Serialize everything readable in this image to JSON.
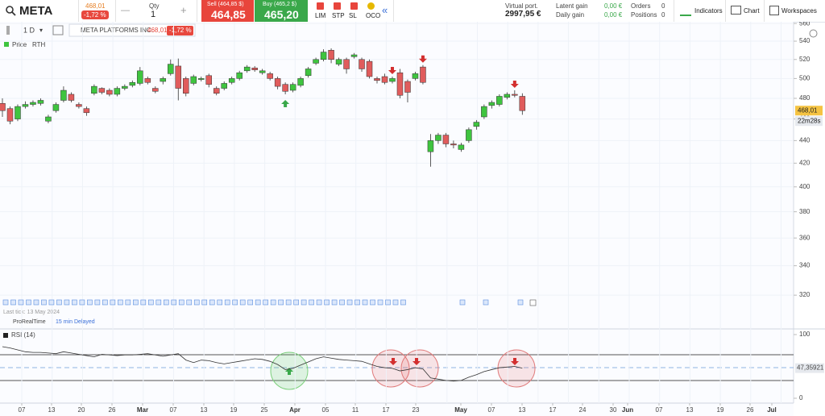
{
  "toolbar": {
    "symbol": "META",
    "price": "468,01",
    "change": "-1,72 %",
    "qty_label": "Qty",
    "qty": "1",
    "sell_label": "Sell (464,85 $)",
    "sell": "464,85",
    "buy_label": "Buy (465,2 $)",
    "buy": "465,20",
    "orders": [
      "LIM",
      "STP",
      "SL",
      "OCO"
    ],
    "portfolio_label": "Virtual port.",
    "portfolio": "2997,95 €",
    "latent_gain_label": "Latent gain",
    "latent_gain": "0,00 €",
    "daily_gain_label": "Daily gain",
    "daily_gain": "0,00 €",
    "orders_label": "Orders",
    "orders_count": "0",
    "positions_label": "Positions",
    "positions_count": "0",
    "menu": [
      "Indicators",
      "Chart",
      "Workspaces"
    ]
  },
  "chart_header": {
    "period": "1 D",
    "instrument": "META PLATFORMS INC.",
    "price": "468,01",
    "change": "-1,72 %",
    "session": "RTH"
  },
  "chart_data": {
    "type": "candlestick",
    "log_scale": true,
    "ylim": [
      300,
      562
    ],
    "yticks": [
      320,
      340,
      360,
      380,
      400,
      420,
      440,
      460,
      480,
      500,
      520,
      540,
      560
    ],
    "x_labels": [
      "07",
      "13",
      "20",
      "26",
      "Mar",
      "07",
      "13",
      "19",
      "25",
      "Apr",
      "05",
      "11",
      "17",
      "23",
      "May",
      "07",
      "13",
      "17",
      "24",
      "30",
      "Jun",
      "07",
      "13",
      "19",
      "26",
      "Jul"
    ],
    "series": [
      {
        "name": "Price",
        "up_color": "#3fc43f",
        "down_color": "#e05c5c",
        "open": [
          475,
          470,
          460,
          472,
          474,
          475,
          458,
          468,
          478,
          484,
          474,
          470,
          485,
          490,
          488,
          484,
          490,
          493,
          495,
          500,
          490,
          497,
          505,
          513,
          500,
          495,
          499,
          503,
          490,
          490,
          496,
          500,
          508,
          511,
          506,
          505,
          500,
          494,
          488,
          493,
          503,
          516,
          520,
          530,
          515,
          520,
          523,
          520,
          518,
          500,
          502,
          497,
          506,
          497,
          500,
          512,
          430,
          440,
          445,
          437,
          432,
          440,
          453,
          462,
          473,
          474,
          481,
          484,
          482
        ],
        "high": [
          480,
          472,
          474,
          477,
          478,
          480,
          464,
          476,
          492,
          486,
          476,
          472,
          494,
          491,
          490,
          492,
          494,
          498,
          512,
          502,
          492,
          502,
          520,
          521,
          502,
          504,
          502,
          505,
          492,
          497,
          502,
          508,
          514,
          513,
          510,
          507,
          502,
          496,
          496,
          502,
          512,
          522,
          531,
          532,
          522,
          522,
          527,
          522,
          520,
          502,
          505,
          502,
          510,
          499,
          507,
          514,
          446,
          447,
          447,
          440,
          438,
          452,
          459,
          474,
          478,
          484,
          486,
          488,
          485
        ],
        "low": [
          462,
          455,
          458,
          470,
          472,
          473,
          456,
          466,
          476,
          476,
          470,
          463,
          483,
          484,
          482,
          482,
          488,
          491,
          493,
          494,
          485,
          494,
          503,
          478,
          482,
          493,
          497,
          491,
          483,
          488,
          494,
          498,
          506,
          507,
          504,
          498,
          489,
          484,
          486,
          491,
          501,
          514,
          518,
          516,
          513,
          505,
          521,
          507,
          500,
          495,
          494,
          495,
          480,
          476,
          498,
          494,
          417,
          437,
          434,
          433,
          430,
          438,
          450,
          460,
          470,
          472,
          479,
          481,
          464
        ],
        "close": [
          468,
          458,
          472,
          474,
          476,
          478,
          462,
          474,
          488,
          478,
          472,
          466,
          492,
          486,
          484,
          490,
          492,
          496,
          508,
          496,
          487,
          500,
          515,
          490,
          485,
          502,
          500,
          494,
          485,
          495,
          500,
          506,
          512,
          509,
          508,
          500,
          492,
          487,
          494,
          500,
          510,
          520,
          528,
          520,
          520,
          510,
          525,
          510,
          502,
          498,
          496,
          500,
          483,
          486,
          505,
          496,
          440,
          445,
          437,
          436,
          436,
          450,
          457,
          472,
          476,
          482,
          484,
          483,
          468
        ]
      }
    ],
    "price_tag": {
      "value": 468.01,
      "label": "468,01"
    },
    "countdown": "22m28s",
    "last_tick": "Last tick: 13 May 2024",
    "source": "ProRealTime",
    "delay": "15 min Delayed"
  },
  "rsi": {
    "title": "RSI (14)",
    "color": "#333333",
    "ylim": [
      0,
      100
    ],
    "yticks": [
      0,
      100
    ],
    "values": [
      81,
      79,
      76,
      73,
      72,
      72,
      71,
      70,
      73,
      71,
      69,
      67,
      65,
      69,
      68,
      67,
      68,
      68,
      69,
      70,
      68,
      66,
      68,
      70,
      60,
      56,
      60,
      59,
      56,
      54,
      56,
      58,
      60,
      62,
      61,
      58,
      53,
      45,
      47,
      52,
      57,
      62,
      65,
      63,
      61,
      60,
      59,
      58,
      54,
      50,
      48,
      47,
      43,
      45,
      48,
      46,
      32,
      30,
      28,
      27,
      28,
      33,
      37,
      42,
      45,
      48,
      49,
      50,
      47.35921
    ],
    "current": {
      "value": 47.35921,
      "label": "47,35921"
    }
  }
}
